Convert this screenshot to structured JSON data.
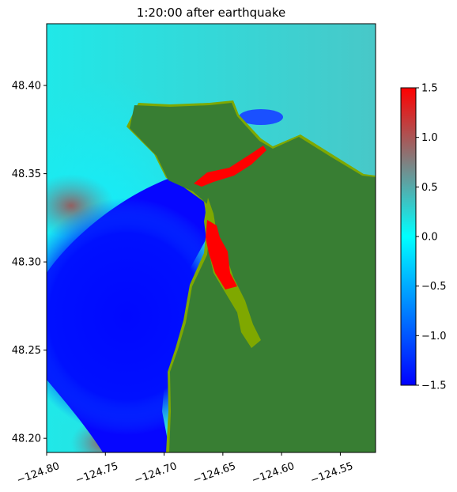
{
  "chart_data": {
    "type": "heatmap",
    "title": "1:20:00 after earthquake",
    "xlabel": "",
    "ylabel": "",
    "xlim": [
      -124.8,
      -124.52
    ],
    "ylim": [
      48.192,
      48.435
    ],
    "x_ticks": [
      {
        "value": -124.8,
        "label": "−124.80"
      },
      {
        "value": -124.75,
        "label": "−124.75"
      },
      {
        "value": -124.7,
        "label": "−124.70"
      },
      {
        "value": -124.65,
        "label": "−124.65"
      },
      {
        "value": -124.6,
        "label": "−124.60"
      },
      {
        "value": -124.55,
        "label": "−124.55"
      }
    ],
    "y_ticks": [
      {
        "value": 48.2,
        "label": "48.20"
      },
      {
        "value": 48.25,
        "label": "48.25"
      },
      {
        "value": 48.3,
        "label": "48.30"
      },
      {
        "value": 48.35,
        "label": "48.35"
      },
      {
        "value": 48.4,
        "label": "48.40"
      }
    ],
    "colorbar": {
      "range": [
        -1.5,
        1.5
      ],
      "ticks": [
        {
          "value": 1.5,
          "label": "1.5"
        },
        {
          "value": 1.0,
          "label": "1.0"
        },
        {
          "value": 0.5,
          "label": "0.5"
        },
        {
          "value": 0.0,
          "label": "0.0"
        },
        {
          "value": -0.5,
          "label": "−0.5"
        },
        {
          "value": -1.0,
          "label": "−1.0"
        },
        {
          "value": -1.5,
          "label": "−1.5"
        }
      ],
      "colors": [
        {
          "value": -1.5,
          "color": "#0000ff"
        },
        {
          "value": -0.75,
          "color": "#0080ff"
        },
        {
          "value": 0.0,
          "color": "#00ffff"
        },
        {
          "value": 0.75,
          "color": "#808080"
        },
        {
          "value": 1.5,
          "color": "#ff0000"
        }
      ]
    },
    "colors": {
      "land": "#387e33",
      "land_edge": "#7fa800",
      "overflow": "#ff0000"
    },
    "grid": false
  }
}
